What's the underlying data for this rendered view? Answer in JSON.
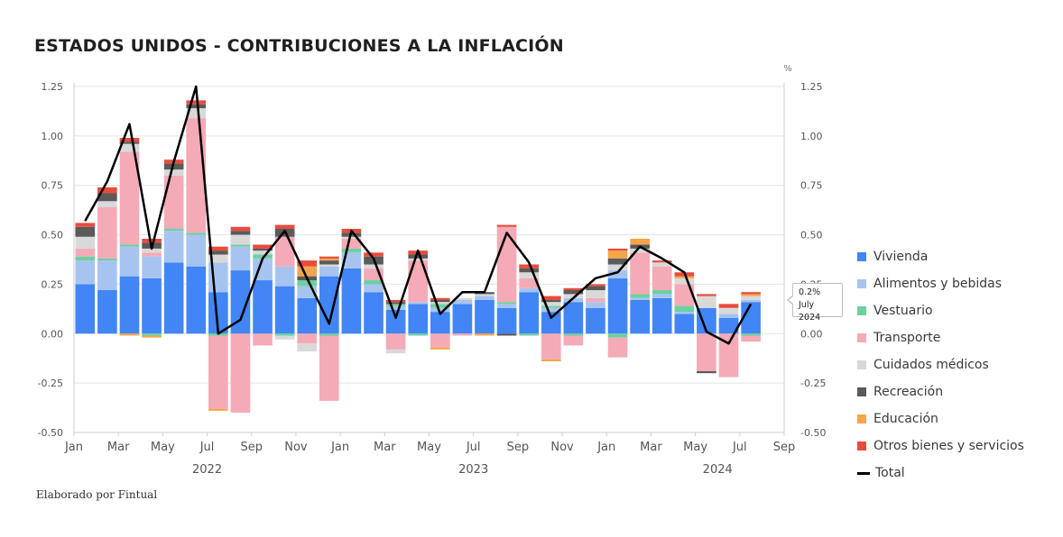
{
  "title": "ESTADOS UNIDOS - CONTRIBUCIONES A LA INFLACIÓN",
  "credit": "Elaborado por Fintual",
  "tooltip": {
    "value": "0.2%",
    "label": "July 2024"
  },
  "chart_data": {
    "type": "bar",
    "stacked": true,
    "unit_label": "%",
    "ylim": [
      -0.5,
      1.25
    ],
    "yticks": [
      "1.25",
      "1.00",
      "0.75",
      "0.50",
      "0.25",
      "0.00",
      "-0.25",
      "-0.50"
    ],
    "ytick_values": [
      1.25,
      1.0,
      0.75,
      0.5,
      0.25,
      0.0,
      -0.25,
      -0.5
    ],
    "xtick_labels": [
      "Jan",
      "Mar",
      "May",
      "Jul",
      "Sep",
      "Nov",
      "Jan",
      "Mar",
      "May",
      "Jul",
      "Sep",
      "Nov",
      "Jan",
      "Mar",
      "May",
      "Jul",
      "Sep"
    ],
    "xtick_months": [
      0,
      2,
      4,
      6,
      8,
      10,
      12,
      14,
      16,
      18,
      20,
      22,
      24,
      26,
      28,
      30,
      32
    ],
    "year_labels": [
      "2022",
      "2023",
      "2024"
    ],
    "year_months": [
      5.5,
      17.5,
      28.5
    ],
    "months": [
      "2022-01",
      "2022-02",
      "2022-03",
      "2022-04",
      "2022-05",
      "2022-06",
      "2022-07",
      "2022-08",
      "2022-09",
      "2022-10",
      "2022-11",
      "2022-12",
      "2023-01",
      "2023-02",
      "2023-03",
      "2023-04",
      "2023-05",
      "2023-06",
      "2023-07",
      "2023-08",
      "2023-09",
      "2023-10",
      "2023-11",
      "2023-12",
      "2024-01",
      "2024-02",
      "2024-03",
      "2024-04",
      "2024-05",
      "2024-06",
      "2024-07"
    ],
    "series": [
      {
        "name": "Vivienda",
        "color": "#4285f4",
        "values": [
          0.25,
          0.22,
          0.29,
          0.28,
          0.36,
          0.34,
          0.21,
          0.32,
          0.27,
          0.24,
          0.18,
          0.29,
          0.33,
          0.21,
          0.12,
          0.15,
          0.11,
          0.15,
          0.17,
          0.13,
          0.21,
          0.11,
          0.16,
          0.13,
          0.28,
          0.17,
          0.18,
          0.1,
          0.13,
          0.08,
          0.16
        ]
      },
      {
        "name": "Alimentos y bebidas",
        "color": "#a7c4f0",
        "values": [
          0.12,
          0.15,
          0.15,
          0.11,
          0.16,
          0.16,
          0.15,
          0.12,
          0.11,
          0.1,
          0.06,
          0.05,
          0.08,
          0.04,
          0.02,
          0.01,
          0.02,
          0.02,
          0.02,
          0.02,
          0.02,
          0.02,
          0.02,
          0.03,
          0.04,
          0.01,
          0.02,
          0.01,
          0.0,
          0.02,
          0.01
        ]
      },
      {
        "name": "Vestuario",
        "color": "#6dd0a0",
        "values": [
          0.02,
          0.01,
          0.01,
          -0.01,
          0.01,
          0.01,
          -0.01,
          0.01,
          0.02,
          -0.01,
          0.03,
          -0.01,
          0.02,
          0.02,
          0.01,
          -0.01,
          0.02,
          0.0,
          0.0,
          0.01,
          -0.01,
          0.01,
          -0.01,
          0.0,
          -0.02,
          0.02,
          0.02,
          0.03,
          0.0,
          0.0,
          -0.01
        ]
      },
      {
        "name": "Transporte",
        "color": "#f4aab7",
        "values": [
          0.04,
          0.26,
          0.47,
          0.02,
          0.27,
          0.58,
          -0.37,
          -0.4,
          -0.06,
          0.15,
          -0.05,
          -0.33,
          0.05,
          0.06,
          -0.08,
          0.21,
          -0.07,
          -0.01,
          0.0,
          0.38,
          0.05,
          -0.13,
          -0.05,
          0.02,
          -0.1,
          0.21,
          0.12,
          0.11,
          -0.19,
          -0.22,
          -0.03
        ]
      },
      {
        "name": "Cuidados médicos",
        "color": "#d9d9d9",
        "values": [
          0.06,
          0.03,
          0.04,
          0.02,
          0.03,
          0.05,
          0.04,
          0.05,
          0.02,
          -0.02,
          -0.04,
          0.01,
          0.01,
          0.02,
          -0.02,
          0.01,
          0.01,
          0.01,
          0.01,
          0.0,
          0.03,
          0.02,
          0.02,
          0.04,
          0.03,
          0.02,
          0.02,
          0.03,
          0.06,
          0.03,
          0.02
        ]
      },
      {
        "name": "Recreación",
        "color": "#5a5a5a",
        "values": [
          0.05,
          0.04,
          0.01,
          0.03,
          0.03,
          0.02,
          0.02,
          0.02,
          0.01,
          0.04,
          0.02,
          0.02,
          0.02,
          0.04,
          0.01,
          0.02,
          0.01,
          0.0,
          0.01,
          -0.01,
          0.02,
          0.01,
          0.02,
          0.02,
          0.03,
          0.02,
          0.0,
          0.0,
          -0.01,
          0.0,
          0.0
        ]
      },
      {
        "name": "Educación",
        "color": "#f5a54a",
        "values": [
          0.0,
          0.0,
          -0.01,
          -0.01,
          0.0,
          0.0,
          -0.01,
          0.0,
          0.0,
          0.0,
          0.05,
          0.01,
          0.0,
          0.0,
          0.0,
          0.0,
          -0.01,
          0.0,
          -0.01,
          0.0,
          0.0,
          -0.01,
          0.0,
          0.0,
          0.04,
          0.03,
          0.0,
          0.01,
          0.0,
          0.0,
          0.01
        ]
      },
      {
        "name": "Otros bienes y servicios",
        "color": "#e84c3d",
        "values": [
          0.02,
          0.03,
          0.02,
          0.02,
          0.02,
          0.02,
          0.02,
          0.02,
          0.02,
          0.02,
          0.03,
          0.01,
          0.02,
          0.02,
          0.01,
          0.02,
          0.01,
          0.0,
          0.0,
          0.01,
          0.02,
          0.02,
          0.01,
          0.01,
          0.01,
          0.0,
          0.01,
          0.02,
          0.01,
          0.02,
          0.01
        ]
      }
    ],
    "total": {
      "name": "Total",
      "color": "#000000",
      "values": [
        0.57,
        0.77,
        1.06,
        0.43,
        0.87,
        1.25,
        0.0,
        0.07,
        0.38,
        0.52,
        0.28,
        0.05,
        0.52,
        0.38,
        0.08,
        0.42,
        0.1,
        0.21,
        0.21,
        0.51,
        0.36,
        0.08,
        0.18,
        0.28,
        0.31,
        0.44,
        0.38,
        0.31,
        0.01,
        -0.05,
        0.15
      ]
    }
  }
}
